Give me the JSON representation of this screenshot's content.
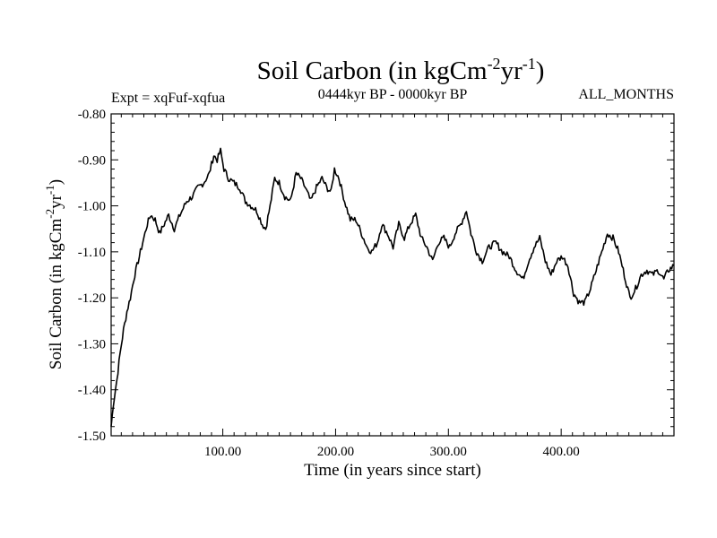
{
  "chart_data": {
    "type": "line",
    "title": "Soil Carbon (in kgCm",
    "title_sup1": "-2",
    "title_mid": "yr",
    "title_sup2": "-1",
    "title_end": ")",
    "subtitle_left": "Expt = xqFuf-xqfua",
    "subtitle_center": "0444kyr BP - 0000kyr BP",
    "subtitle_right": "ALL_MONTHS",
    "xlabel": "Time (in years since start)",
    "ylabel": "Soil Carbon (in kgCm",
    "ylabel_sup1": "-2",
    "ylabel_mid": "yr",
    "ylabel_sup2": "-1",
    "ylabel_end": ")",
    "xlim": [
      1,
      500
    ],
    "ylim": [
      -1.5,
      -0.8
    ],
    "xticks": [
      100,
      200,
      300,
      400
    ],
    "xtick_labels": [
      "100.00",
      "200.00",
      "300.00",
      "400.00"
    ],
    "yticks": [
      -1.5,
      -1.4,
      -1.3,
      -1.2,
      -1.1,
      -1.0,
      -0.9,
      -0.8
    ],
    "ytick_labels": [
      "-1.50",
      "-1.40",
      "-1.30",
      "-1.20",
      "-1.10",
      "-1.00",
      "-0.90",
      "-0.80"
    ],
    "series": [
      {
        "name": "Soil Carbon",
        "anchors": [
          [
            1,
            -1.48
          ],
          [
            3,
            -1.43
          ],
          [
            6,
            -1.38
          ],
          [
            9,
            -1.32
          ],
          [
            12,
            -1.27
          ],
          [
            15,
            -1.23
          ],
          [
            18,
            -1.2
          ],
          [
            21,
            -1.16
          ],
          [
            24,
            -1.13
          ],
          [
            27,
            -1.1
          ],
          [
            30,
            -1.07
          ],
          [
            33,
            -1.04
          ],
          [
            36,
            -1.02
          ],
          [
            40,
            -1.03
          ],
          [
            44,
            -1.06
          ],
          [
            48,
            -1.04
          ],
          [
            52,
            -1.02
          ],
          [
            57,
            -1.05
          ],
          [
            62,
            -1.02
          ],
          [
            68,
            -0.99
          ],
          [
            73,
            -0.98
          ],
          [
            78,
            -0.96
          ],
          [
            83,
            -0.95
          ],
          [
            88,
            -0.93
          ],
          [
            92,
            -0.89
          ],
          [
            95,
            -0.9
          ],
          [
            98,
            -0.88
          ],
          [
            101,
            -0.92
          ],
          [
            105,
            -0.94
          ],
          [
            110,
            -0.95
          ],
          [
            115,
            -0.96
          ],
          [
            120,
            -0.99
          ],
          [
            125,
            -1.0
          ],
          [
            130,
            -1.01
          ],
          [
            135,
            -1.04
          ],
          [
            138,
            -1.05
          ],
          [
            142,
            -1.0
          ],
          [
            146,
            -0.94
          ],
          [
            150,
            -0.95
          ],
          [
            155,
            -0.98
          ],
          [
            160,
            -0.99
          ],
          [
            165,
            -0.93
          ],
          [
            169,
            -0.94
          ],
          [
            173,
            -0.96
          ],
          [
            178,
            -0.99
          ],
          [
            183,
            -0.96
          ],
          [
            188,
            -0.94
          ],
          [
            192,
            -0.96
          ],
          [
            196,
            -0.97
          ],
          [
            199,
            -0.92
          ],
          [
            203,
            -0.94
          ],
          [
            208,
            -0.99
          ],
          [
            213,
            -1.03
          ],
          [
            218,
            -1.03
          ],
          [
            223,
            -1.06
          ],
          [
            228,
            -1.09
          ],
          [
            232,
            -1.1
          ],
          [
            237,
            -1.08
          ],
          [
            241,
            -1.04
          ],
          [
            246,
            -1.06
          ],
          [
            251,
            -1.09
          ],
          [
            256,
            -1.04
          ],
          [
            261,
            -1.07
          ],
          [
            266,
            -1.04
          ],
          [
            271,
            -1.02
          ],
          [
            276,
            -1.07
          ],
          [
            281,
            -1.09
          ],
          [
            286,
            -1.12
          ],
          [
            291,
            -1.08
          ],
          [
            296,
            -1.07
          ],
          [
            301,
            -1.09
          ],
          [
            306,
            -1.06
          ],
          [
            311,
            -1.04
          ],
          [
            316,
            -1.01
          ],
          [
            320,
            -1.06
          ],
          [
            325,
            -1.1
          ],
          [
            330,
            -1.12
          ],
          [
            336,
            -1.09
          ],
          [
            342,
            -1.08
          ],
          [
            348,
            -1.1
          ],
          [
            354,
            -1.11
          ],
          [
            360,
            -1.14
          ],
          [
            366,
            -1.16
          ],
          [
            371,
            -1.12
          ],
          [
            376,
            -1.09
          ],
          [
            381,
            -1.07
          ],
          [
            386,
            -1.12
          ],
          [
            391,
            -1.15
          ],
          [
            396,
            -1.12
          ],
          [
            401,
            -1.11
          ],
          [
            406,
            -1.13
          ],
          [
            411,
            -1.19
          ],
          [
            416,
            -1.21
          ],
          [
            421,
            -1.21
          ],
          [
            426,
            -1.18
          ],
          [
            431,
            -1.14
          ],
          [
            436,
            -1.1
          ],
          [
            441,
            -1.06
          ],
          [
            446,
            -1.07
          ],
          [
            451,
            -1.1
          ],
          [
            456,
            -1.15
          ],
          [
            461,
            -1.2
          ],
          [
            466,
            -1.18
          ],
          [
            471,
            -1.15
          ],
          [
            476,
            -1.14
          ],
          [
            481,
            -1.15
          ],
          [
            486,
            -1.14
          ],
          [
            491,
            -1.16
          ],
          [
            495,
            -1.14
          ],
          [
            500,
            -1.13
          ]
        ]
      }
    ]
  }
}
